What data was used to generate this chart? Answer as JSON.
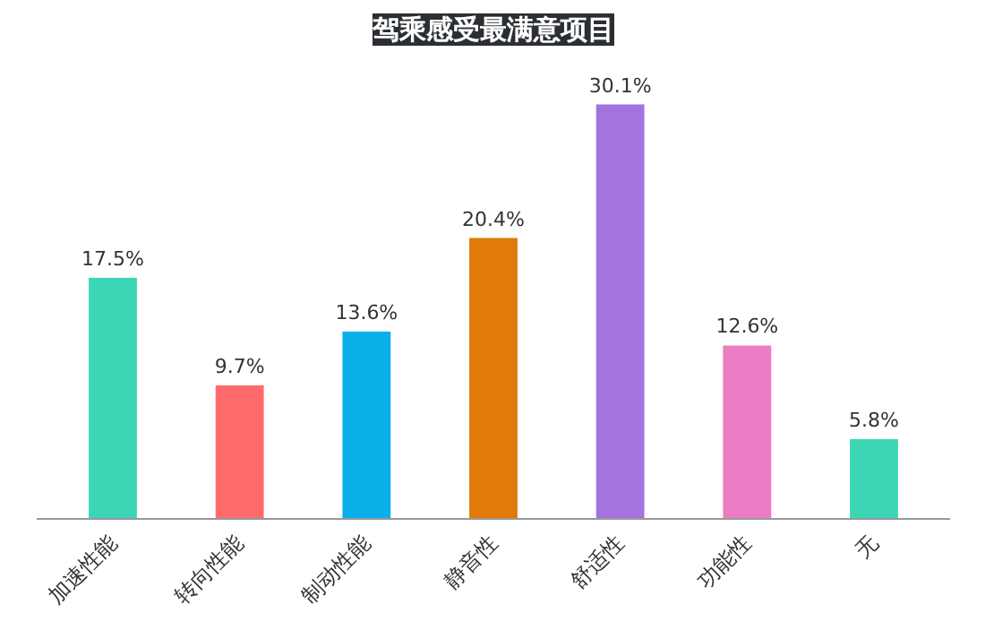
{
  "chart_data": {
    "type": "bar",
    "title": "驾乘感受最满意项目",
    "categories": [
      "加速性能",
      "转向性能",
      "制动性能",
      "静音性",
      "舒适性",
      "功能性",
      "无"
    ],
    "values": [
      17.5,
      9.7,
      13.6,
      20.4,
      30.1,
      12.6,
      5.8
    ],
    "colors": [
      "#3dd6b5",
      "#ff6b6b",
      "#0bb0ea",
      "#e07b0a",
      "#a374e0",
      "#ec7cc4",
      "#3dd6b5"
    ],
    "value_labels": [
      "17.5%",
      "9.7%",
      "13.6%",
      "20.4%",
      "30.1%",
      "12.6%",
      "5.8%"
    ],
    "grid": false
  }
}
